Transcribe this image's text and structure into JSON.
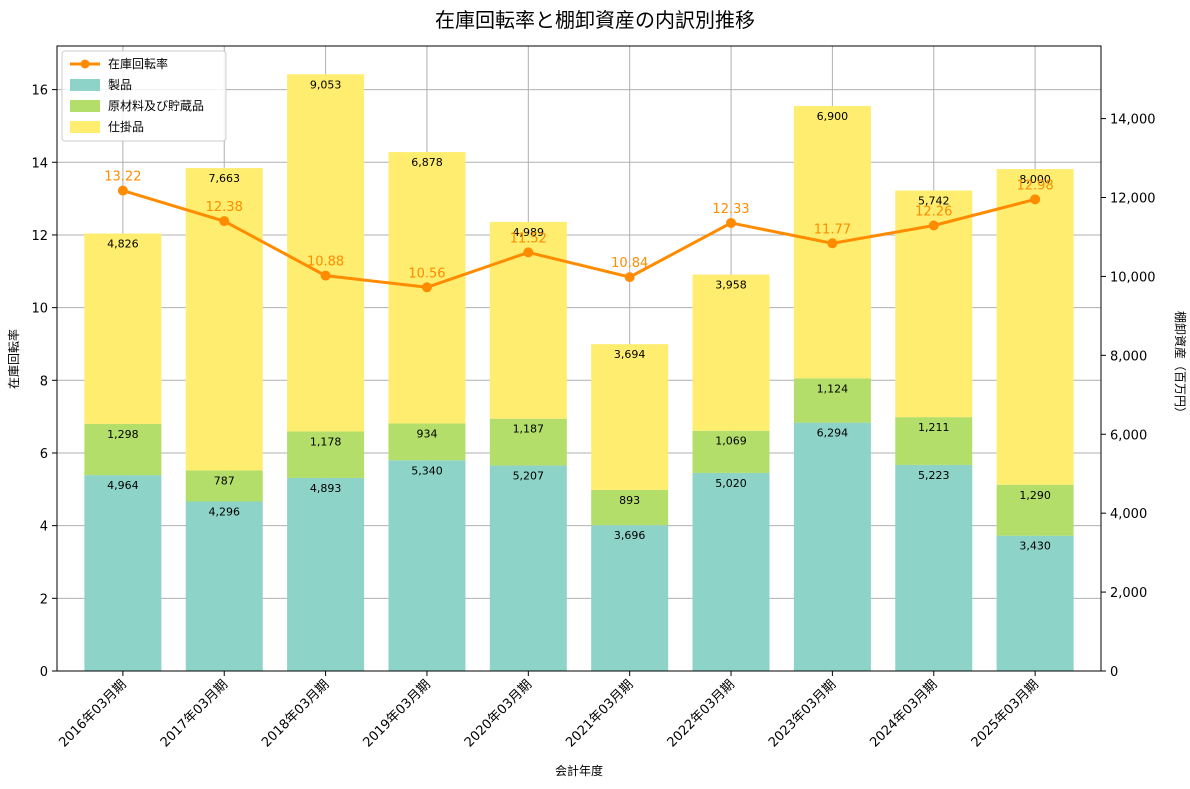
{
  "chart_data": {
    "type": "bar",
    "title": "在庫回転率と棚卸資産の内訳別推移",
    "xlabel": "会計年度",
    "ylabel": "在庫回転率",
    "ylabel_right": "棚卸資産（百万円）",
    "ylim": [
      0,
      17.2
    ],
    "ylim_right": [
      0,
      15840
    ],
    "yticks": [
      "0",
      "2",
      "4",
      "6",
      "8",
      "10",
      "12",
      "14",
      "16"
    ],
    "yticks_right": [
      "0",
      "2,000",
      "4,000",
      "6,000",
      "8,000",
      "10,000",
      "12,000",
      "14,000"
    ],
    "grid": true,
    "legend_position": "top-left",
    "categories": [
      "2016年03月期",
      "2017年03月期",
      "2018年03月期",
      "2019年03月期",
      "2020年03月期",
      "2021年03月期",
      "2022年03月期",
      "2023年03月期",
      "2024年03月期",
      "2025年03月期"
    ],
    "series": [
      {
        "name": "製品",
        "type": "bar",
        "axis": "right",
        "color": "#8dd3c7",
        "values": [
          4964,
          4296,
          4893,
          5340,
          5207,
          3696,
          5020,
          6294,
          5223,
          3430
        ],
        "labels": [
          "4,964",
          "4,296",
          "4,893",
          "5,340",
          "5,207",
          "3,696",
          "5,020",
          "6,294",
          "5,223",
          "3,430"
        ]
      },
      {
        "name": "原材料及び貯蔵品",
        "type": "bar",
        "axis": "right",
        "color": "#b3de69",
        "values": [
          1298,
          787,
          1178,
          934,
          1187,
          893,
          1069,
          1124,
          1211,
          1290
        ],
        "labels": [
          "1,298",
          "787",
          "1,178",
          "934",
          "1,187",
          "893",
          "1,069",
          "1,124",
          "1,211",
          "1,290"
        ]
      },
      {
        "name": "仕掛品",
        "type": "bar",
        "axis": "right",
        "color": "#ffed6f",
        "values": [
          4826,
          7663,
          9053,
          6878,
          4989,
          3694,
          3958,
          6900,
          5742,
          8000
        ],
        "labels": [
          "4,826",
          "7,663",
          "9,053",
          "6,878",
          "4,989",
          "3,694",
          "3,958",
          "6,900",
          "5,742",
          "8,000"
        ]
      },
      {
        "name": "在庫回転率",
        "type": "line",
        "axis": "left",
        "color": "#ff8c00",
        "values": [
          13.22,
          12.38,
          10.88,
          10.56,
          11.52,
          10.84,
          12.33,
          11.77,
          12.26,
          12.98
        ],
        "labels": [
          "13.22",
          "12.38",
          "10.88",
          "10.56",
          "11.52",
          "10.84",
          "12.33",
          "11.77",
          "12.26",
          "12.98"
        ]
      }
    ]
  }
}
